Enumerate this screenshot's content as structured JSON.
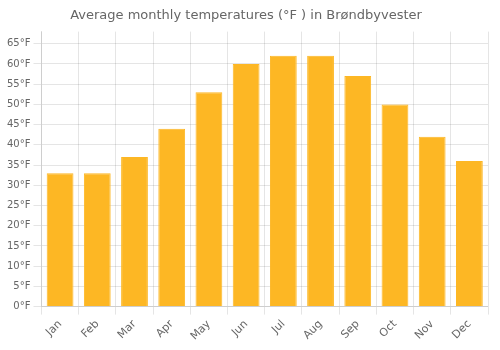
{
  "chart_data": {
    "type": "bar",
    "title": "Average monthly temperatures (°F ) in Brøndbyvester",
    "categories": [
      "Jan",
      "Feb",
      "Mar",
      "Apr",
      "May",
      "Jun",
      "Jul",
      "Aug",
      "Sep",
      "Oct",
      "Nov",
      "Dec"
    ],
    "values": [
      33,
      33,
      37,
      44,
      53,
      60,
      62,
      62,
      57,
      50,
      42,
      36
    ],
    "color": "#FDB724",
    "ylim": [
      0,
      68
    ],
    "yticks": [
      {
        "value": 0,
        "label": "0°F"
      },
      {
        "value": 5,
        "label": "5°F"
      },
      {
        "value": 10,
        "label": "10°F"
      },
      {
        "value": 15,
        "label": "15°F"
      },
      {
        "value": 20,
        "label": "20°F"
      },
      {
        "value": 25,
        "label": "25°F"
      },
      {
        "value": 30,
        "label": "30°F"
      },
      {
        "value": 35,
        "label": "35°F"
      },
      {
        "value": 40,
        "label": "40°F"
      },
      {
        "value": 45,
        "label": "45°F"
      },
      {
        "value": 50,
        "label": "50°F"
      },
      {
        "value": 55,
        "label": "55°F"
      },
      {
        "value": 60,
        "label": "60°F"
      },
      {
        "value": 65,
        "label": "65°F"
      }
    ],
    "grid": true
  }
}
